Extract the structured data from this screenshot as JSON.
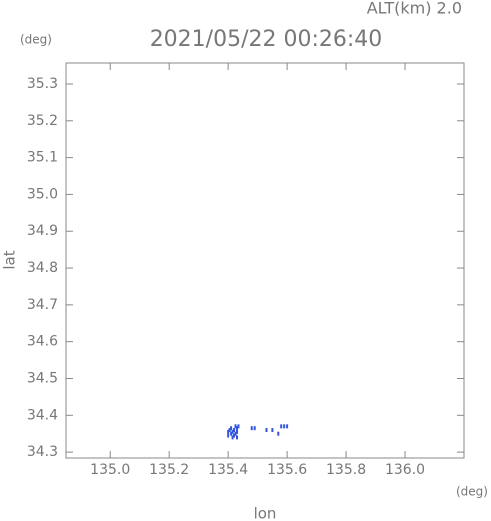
{
  "chart_data": {
    "type": "scatter",
    "title": "2021/05/22 00:26:40",
    "annotation": "ALT(km) 2.0",
    "x_label": "lon",
    "y_label": "lat",
    "x_unit": "(deg)",
    "y_unit": "(deg)",
    "color": "#3355dd",
    "x": [
      135.4,
      135.405,
      135.41,
      135.41,
      135.415,
      135.42,
      135.42,
      135.425,
      135.425,
      135.43,
      135.43,
      135.435,
      135.4,
      135.415,
      135.43,
      135.48,
      135.49,
      135.53,
      135.55,
      135.57,
      135.58,
      135.59,
      135.6
    ],
    "y": [
      34.355,
      34.36,
      34.35,
      34.365,
      34.355,
      34.345,
      34.36,
      34.35,
      34.37,
      34.355,
      34.34,
      34.37,
      34.345,
      34.34,
      34.365,
      34.365,
      34.365,
      34.36,
      34.36,
      34.35,
      34.37,
      34.37,
      34.37
    ],
    "xlim": [
      134.85,
      136.2
    ],
    "ylim": [
      34.284,
      35.357
    ],
    "xticks": [
      {
        "value": 135.0,
        "label": "135.0"
      },
      135.2,
      135.4,
      135.6,
      135.8,
      {
        "value": 136.0,
        "label": "136.0"
      }
    ],
    "yticks": [
      34.3,
      34.4,
      34.5,
      34.6,
      34.7,
      34.8,
      34.9,
      {
        "value": 35.0,
        "label": "35.0"
      },
      35.1,
      35.2,
      35.3
    ]
  }
}
